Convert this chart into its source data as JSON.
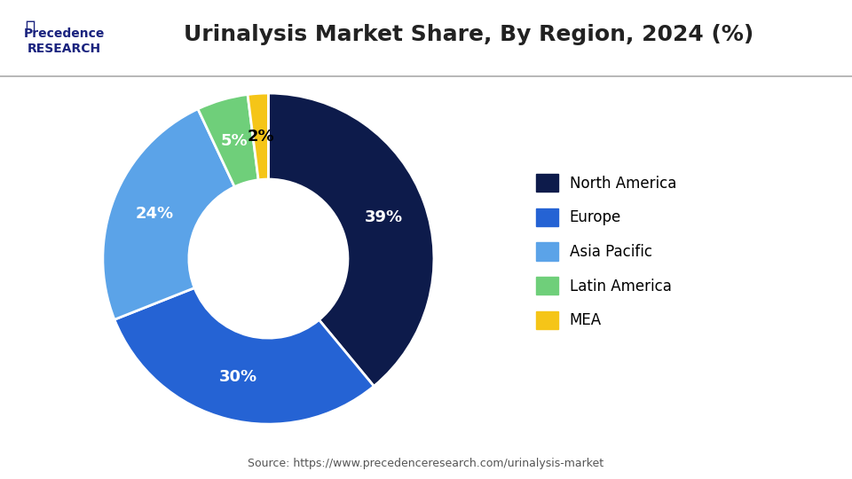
{
  "title": "Urinalysis Market Share, By Region, 2024 (%)",
  "segments": [
    {
      "label": "North America",
      "value": 39,
      "color": "#0d1b4b",
      "text_color": "white"
    },
    {
      "label": "Europe",
      "value": 30,
      "color": "#2563d4",
      "text_color": "white"
    },
    {
      "label": "Asia Pacific",
      "value": 24,
      "color": "#5ba3e8",
      "text_color": "white"
    },
    {
      "label": "Latin America",
      "value": 5,
      "color": "#6fcf7a",
      "text_color": "white"
    },
    {
      "label": "MEA",
      "value": 2,
      "color": "#f5c518",
      "text_color": "black"
    }
  ],
  "source_text": "Source: https://www.precedenceresearch.com/urinalysis-market",
  "background_color": "#ffffff",
  "pct_label_fontsize": 13,
  "legend_fontsize": 12,
  "title_fontsize": 18
}
